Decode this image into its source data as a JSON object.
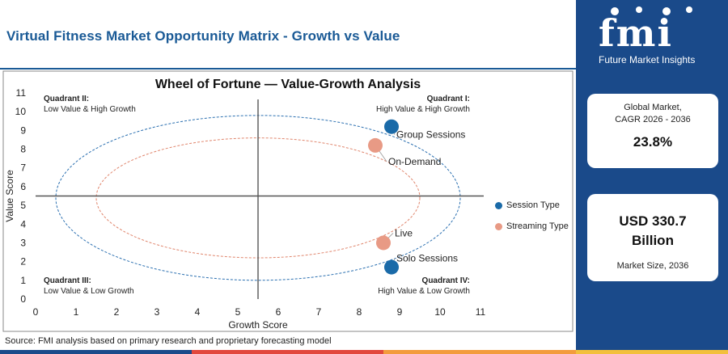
{
  "header": {
    "title": "Virtual Fitness Market Opportunity Matrix - Growth vs Value"
  },
  "chart_data": {
    "type": "scatter",
    "title": "Wheel of Fortune — Value-Growth Analysis",
    "xlabel": "Growth Score",
    "ylabel": "Value Score",
    "xlim": [
      0,
      11
    ],
    "ylim": [
      0,
      11
    ],
    "xticks": [
      0,
      1,
      2,
      3,
      4,
      5,
      6,
      7,
      8,
      9,
      10,
      11
    ],
    "yticks": [
      0,
      1,
      2,
      3,
      4,
      5,
      6,
      7,
      8,
      9,
      10,
      11
    ],
    "divider_x": 5.5,
    "divider_y": 5.5,
    "grid": false,
    "legend_position": "right",
    "series": [
      {
        "name": "Session Type",
        "color": "#1a6aa8",
        "points": [
          {
            "label": "Group Sessions",
            "x": 8.8,
            "y": 9.2
          },
          {
            "label": "Solo Sessions",
            "x": 8.8,
            "y": 1.7
          }
        ]
      },
      {
        "name": "Streaming Type",
        "color": "#e89a85",
        "points": [
          {
            "label": "On-Demand",
            "x": 8.4,
            "y": 8.2
          },
          {
            "label": "Live",
            "x": 8.6,
            "y": 3.0
          }
        ]
      }
    ],
    "quadrants": [
      {
        "id": "q2",
        "title": "Quadrant II:",
        "desc": "Low Value & High Growth"
      },
      {
        "id": "q1",
        "title": "Quadrant I:",
        "desc": "High Value & High Growth"
      },
      {
        "id": "q3",
        "title": "Quadrant III:",
        "desc": "Low Value & Low Growth"
      },
      {
        "id": "q4",
        "title": "Quadrant IV:",
        "desc": "High Value & Low Growth"
      }
    ]
  },
  "source": "Source: FMI analysis based on primary research and proprietary forecasting model",
  "brand": {
    "logo": "fmi",
    "name": "Future Market Insights",
    "url": "www.futuremarketinsights.com"
  },
  "stats": {
    "cagr_label_1": "Global Market,",
    "cagr_label_2": "CAGR 2026 - 2036",
    "cagr_value": "23.8%",
    "size_value_1": "USD 330.7",
    "size_value_2": "Billion",
    "size_label": "Market Size, 2036"
  },
  "colors": {
    "brand_blue": "#1a4a8a",
    "title_blue": "#1a5a96",
    "bar": [
      "#1a4a8a",
      "#e2483d",
      "#f39c3d",
      "#1a4a8a",
      "#f3c03d"
    ]
  }
}
